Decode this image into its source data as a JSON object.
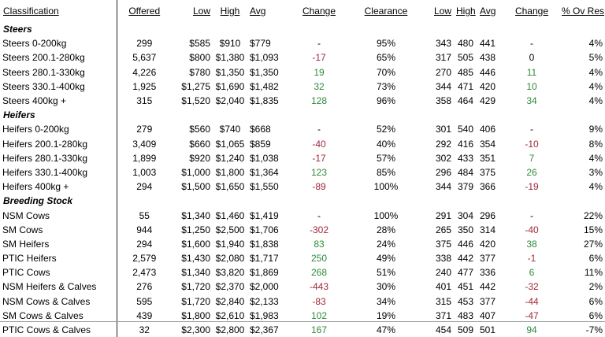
{
  "headers": {
    "classification": "Classification",
    "offered": "Offered",
    "low": "Low",
    "high": "High",
    "avg": "Avg",
    "change": "Change",
    "clearance": "Clearance",
    "low2": "Low",
    "high2": "High",
    "avg2": "Avg",
    "change2": "Change",
    "ov_res": "% Ov Res"
  },
  "sections": [
    {
      "title": "Steers",
      "rows": [
        {
          "name": "Steers 0-200kg",
          "offered": "299",
          "low": "$585",
          "high": "$910",
          "avg": "$779",
          "change": "-",
          "clearance": "95%",
          "low2": "343",
          "high2": "480",
          "avg2": "441",
          "change2": "-",
          "ov_res": "4%"
        },
        {
          "name": "Steers 200.1-280kg",
          "offered": "5,637",
          "low": "$800",
          "high": "$1,380",
          "avg": "$1,093",
          "change": "-17",
          "clearance": "65%",
          "low2": "317",
          "high2": "505",
          "avg2": "438",
          "change2": "0",
          "ov_res": "5%"
        },
        {
          "name": "Steers 280.1-330kg",
          "offered": "4,226",
          "low": "$780",
          "high": "$1,350",
          "avg": "$1,350",
          "change": "19",
          "clearance": "70%",
          "low2": "270",
          "high2": "485",
          "avg2": "446",
          "change2": "11",
          "ov_res": "4%"
        },
        {
          "name": "Steers 330.1-400kg",
          "offered": "1,925",
          "low": "$1,275",
          "high": "$1,690",
          "avg": "$1,482",
          "change": "32",
          "clearance": "73%",
          "low2": "344",
          "high2": "471",
          "avg2": "420",
          "change2": "10",
          "ov_res": "4%"
        },
        {
          "name": "Steers 400kg +",
          "offered": "315",
          "low": "$1,520",
          "high": "$2,040",
          "avg": "$1,835",
          "change": "128",
          "clearance": "96%",
          "low2": "358",
          "high2": "464",
          "avg2": "429",
          "change2": "34",
          "ov_res": "4%"
        }
      ]
    },
    {
      "title": "Heifers",
      "rows": [
        {
          "name": "Heifers 0-200kg",
          "offered": "279",
          "low": "$560",
          "high": "$740",
          "avg": "$668",
          "change": "-",
          "clearance": "52%",
          "low2": "301",
          "high2": "540",
          "avg2": "406",
          "change2": "-",
          "ov_res": "9%"
        },
        {
          "name": "Heifers 200.1-280kg",
          "offered": "3,409",
          "low": "$660",
          "high": "$1,065",
          "avg": "$859",
          "change": "-40",
          "clearance": "40%",
          "low2": "292",
          "high2": "416",
          "avg2": "354",
          "change2": "-10",
          "ov_res": "8%"
        },
        {
          "name": "Heifers 280.1-330kg",
          "offered": "1,899",
          "low": "$920",
          "high": "$1,240",
          "avg": "$1,038",
          "change": "-17",
          "clearance": "57%",
          "low2": "302",
          "high2": "433",
          "avg2": "351",
          "change2": "7",
          "ov_res": "4%"
        },
        {
          "name": "Heifers 330.1-400kg",
          "offered": "1,003",
          "low": "$1,000",
          "high": "$1,800",
          "avg": "$1,364",
          "change": "123",
          "clearance": "85%",
          "low2": "296",
          "high2": "484",
          "avg2": "375",
          "change2": "26",
          "ov_res": "3%"
        },
        {
          "name": "Heifers 400kg +",
          "offered": "294",
          "low": "$1,500",
          "high": "$1,650",
          "avg": "$1,550",
          "change": "-89",
          "clearance": "100%",
          "low2": "344",
          "high2": "379",
          "avg2": "366",
          "change2": "-19",
          "ov_res": "4%"
        }
      ]
    },
    {
      "title": "Breeding Stock",
      "rows": [
        {
          "name": "NSM Cows",
          "offered": "55",
          "low": "$1,340",
          "high": "$1,460",
          "avg": "$1,419",
          "change": "-",
          "clearance": "100%",
          "low2": "291",
          "high2": "304",
          "avg2": "296",
          "change2": "-",
          "ov_res": "22%"
        },
        {
          "name": "SM Cows",
          "offered": "944",
          "low": "$1,250",
          "high": "$2,500",
          "avg": "$1,706",
          "change": "-302",
          "clearance": "28%",
          "low2": "265",
          "high2": "350",
          "avg2": "314",
          "change2": "-40",
          "ov_res": "15%"
        },
        {
          "name": "SM Heifers",
          "offered": "294",
          "low": "$1,600",
          "high": "$1,940",
          "avg": "$1,838",
          "change": "83",
          "clearance": "24%",
          "low2": "375",
          "high2": "446",
          "avg2": "420",
          "change2": "38",
          "ov_res": "27%"
        },
        {
          "name": "PTIC Heifers",
          "offered": "2,579",
          "low": "$1,430",
          "high": "$2,080",
          "avg": "$1,717",
          "change": "250",
          "clearance": "49%",
          "low2": "338",
          "high2": "442",
          "avg2": "377",
          "change2": "-1",
          "ov_res": "6%"
        },
        {
          "name": "PTIC Cows",
          "offered": "2,473",
          "low": "$1,340",
          "high": "$3,820",
          "avg": "$1,869",
          "change": "268",
          "clearance": "51%",
          "low2": "240",
          "high2": "477",
          "avg2": "336",
          "change2": "6",
          "ov_res": "11%"
        },
        {
          "name": "NSM Heifers & Calves",
          "offered": "276",
          "low": "$1,720",
          "high": "$2,370",
          "avg": "$2,000",
          "change": "-443",
          "clearance": "30%",
          "low2": "401",
          "high2": "451",
          "avg2": "442",
          "change2": "-32",
          "ov_res": "2%"
        },
        {
          "name": "NSM Cows & Calves",
          "offered": "595",
          "low": "$1,720",
          "high": "$2,840",
          "avg": "$2,133",
          "change": "-83",
          "clearance": "34%",
          "low2": "315",
          "high2": "453",
          "avg2": "377",
          "change2": "-44",
          "ov_res": "6%"
        },
        {
          "name": "SM Cows & Calves",
          "offered": "439",
          "low": "$1,800",
          "high": "$2,610",
          "avg": "$1,983",
          "change": "102",
          "clearance": "19%",
          "low2": "371",
          "high2": "483",
          "avg2": "407",
          "change2": "-47",
          "ov_res": "6%"
        },
        {
          "name": "PTIC Cows & Calves",
          "offered": "32",
          "low": "$2,300",
          "high": "$2,800",
          "avg": "$2,367",
          "change": "167",
          "clearance": "47%",
          "low2": "454",
          "high2": "509",
          "avg2": "501",
          "change2": "94",
          "ov_res": "-7%"
        }
      ]
    }
  ],
  "colors": {
    "positive_change": "#2e8b3a",
    "negative_change": "#a0283a"
  }
}
